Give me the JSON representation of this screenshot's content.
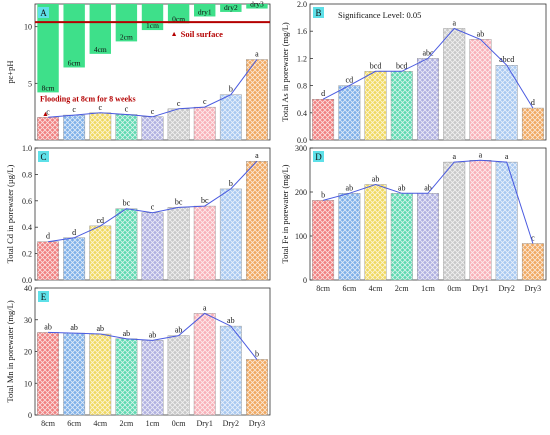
{
  "colors": {
    "green": "#3ee08a",
    "red": "#b40000",
    "trend": "#4a5ae0",
    "panel_label_bg": "#5ee0e8",
    "bars": [
      "#f08080",
      "#7fb0e8",
      "#f0d860",
      "#5ed8b0",
      "#b0b0e0",
      "#c8c8c8",
      "#f8b0b8",
      "#a8c8f0",
      "#f0a860"
    ]
  },
  "chart_data": [
    {
      "panel": "A",
      "type": "bar",
      "ylabel": "pε+pH",
      "ytick_labels": [
        "5",
        "10"
      ],
      "ylim": [
        0,
        12
      ],
      "categories": [
        "8cm",
        "6cm",
        "4cm",
        "2cm",
        "1cm",
        "0cm",
        "dry1",
        "dry2",
        "dry3"
      ],
      "values": [
        2.0,
        2.2,
        2.4,
        2.25,
        2.05,
        2.75,
        2.9,
        4.0,
        7.1
      ],
      "letters": [
        "c",
        "c",
        "c",
        "c",
        "c",
        "c",
        "c",
        "b",
        "a"
      ],
      "depth_labels": [
        "8cm",
        "6cm",
        "4cm",
        "2cm",
        "1cm",
        "0cm",
        "dry1",
        "dry2",
        "dry3"
      ],
      "depth_bar_bottoms": [
        4.2,
        6.4,
        7.6,
        8.7,
        9.7,
        10.3,
        10.9,
        11.3,
        11.6
      ],
      "soil_surface_level": 10.4,
      "annotations": {
        "soil_surface": "Soil surface",
        "flooding": "Flooding at 8cm for 8 weeks"
      }
    },
    {
      "panel": "B",
      "type": "bar",
      "ylabel": "Total As in porewater (mg/L)",
      "ylim": [
        0,
        2.0
      ],
      "yticks": [
        "0.0",
        "0.4",
        "0.8",
        "1.2",
        "1.6",
        "2.0"
      ],
      "title": "Significance Level: 0.05",
      "categories": [
        "8cm",
        "6cm",
        "4cm",
        "2cm",
        "1cm",
        "0cm",
        "Dry1",
        "Dry2",
        "Dry3"
      ],
      "values": [
        0.6,
        0.8,
        1.01,
        1.01,
        1.2,
        1.64,
        1.48,
        1.1,
        0.47
      ],
      "letters": [
        "d",
        "cd",
        "bcd",
        "bcd",
        "abc",
        "a",
        "ab",
        "abcd",
        "d"
      ]
    },
    {
      "panel": "C",
      "type": "bar",
      "ylabel": "Total Cd in porewater (µg/L)",
      "ylim": [
        0,
        1.0
      ],
      "yticks": [
        "0.0",
        "0.2",
        "0.4",
        "0.6",
        "0.8",
        "1.0"
      ],
      "categories": [
        "8cm",
        "6cm",
        "4cm",
        "2cm",
        "1cm",
        "0cm",
        "Dry1",
        "Dry2",
        "Dry3"
      ],
      "values": [
        0.29,
        0.32,
        0.41,
        0.54,
        0.51,
        0.55,
        0.56,
        0.69,
        0.9
      ],
      "letters": [
        "d",
        "d",
        "cd",
        "bc",
        "c",
        "bc",
        "bc",
        "b",
        "a"
      ]
    },
    {
      "panel": "D",
      "type": "bar",
      "ylabel": "Total Fe in porewater (mg/L)",
      "ylim": [
        0,
        300
      ],
      "yticks": [
        "0",
        "100",
        "200",
        "300"
      ],
      "categories": [
        "8cm",
        "6cm",
        "4cm",
        "2cm",
        "1cm",
        "0cm",
        "Dry1",
        "Dry2",
        "Dry3"
      ],
      "values": [
        181,
        197,
        217,
        197,
        197,
        268,
        272,
        268,
        83
      ],
      "letters": [
        "b",
        "ab",
        "ab",
        "ab",
        "ab",
        "a",
        "a",
        "a",
        "c"
      ]
    },
    {
      "panel": "E",
      "type": "bar",
      "ylabel": "Total Mn in porewater (mg/L)",
      "ylim": [
        0,
        40
      ],
      "yticks": [
        "0",
        "10",
        "20",
        "30",
        "40"
      ],
      "categories": [
        "8cm",
        "6cm",
        "4cm",
        "2cm",
        "1cm",
        "0cm",
        "Dry1",
        "Dry2",
        "Dry3"
      ],
      "values": [
        26,
        25.8,
        25.5,
        24,
        23.5,
        25,
        32,
        28,
        17.5
      ],
      "letters": [
        "ab",
        "ab",
        "ab",
        "ab",
        "ab",
        "ab",
        "a",
        "ab",
        "b"
      ]
    }
  ]
}
